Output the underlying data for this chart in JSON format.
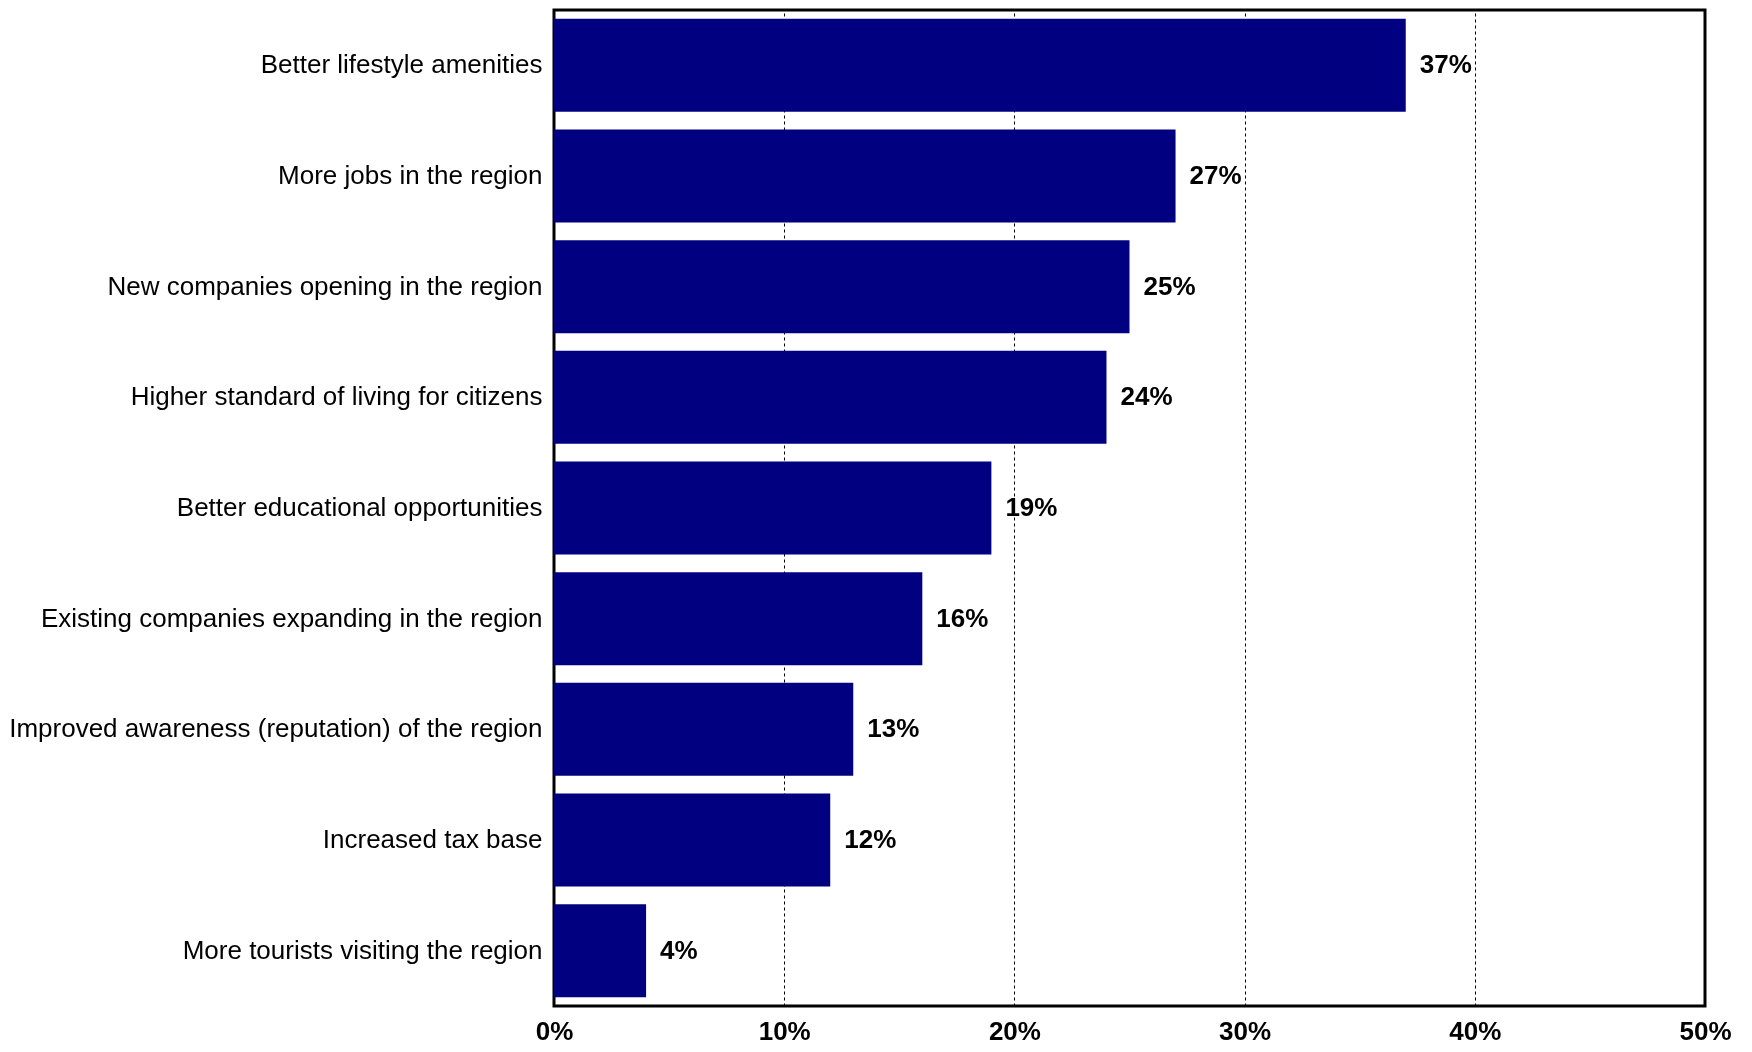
{
  "chart_data": {
    "type": "bar",
    "orientation": "horizontal",
    "categories": [
      "Better lifestyle amenities",
      "More jobs in the region",
      "New companies opening in the region",
      "Higher standard of living for citizens",
      "Better educational opportunities",
      "Existing companies expanding in the region",
      "Improved awareness (reputation) of the region",
      "Increased tax base",
      "More tourists visiting the region"
    ],
    "values": [
      37,
      27,
      25,
      24,
      19,
      16,
      13,
      12,
      4
    ],
    "value_labels": [
      "37%",
      "27%",
      "25%",
      "24%",
      "19%",
      "16%",
      "13%",
      "12%",
      "4%"
    ],
    "color": "#000080",
    "xlim": [
      0,
      50
    ],
    "xticks": [
      {
        "value": 0,
        "label": "0%"
      },
      {
        "value": 10,
        "label": "10%"
      },
      {
        "value": 20,
        "label": "20%"
      },
      {
        "value": 30,
        "label": "30%"
      },
      {
        "value": 40,
        "label": "40%"
      },
      {
        "value": 50,
        "label": "50%"
      }
    ],
    "grid": "x"
  }
}
